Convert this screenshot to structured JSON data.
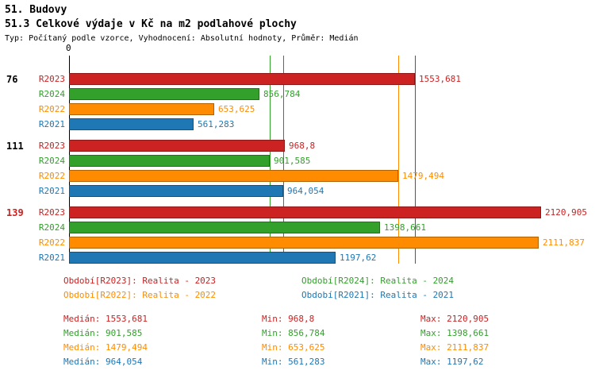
{
  "header": {
    "title": "51. Budovy",
    "subtitle": "51.3 Celkové výdaje v Kč na m2 podlahové plochy",
    "meta": "Typ: Počítaný podle vzorce, Vyhodnocení: Absolutní hodnoty, Průměr: Medián"
  },
  "chart_data": {
    "type": "bar",
    "orientation": "horizontal",
    "title": "51.3 Celkové výdaje v Kč na m2 podlahové plochy",
    "xlabel": "",
    "ylabel": "",
    "xlim": [
      0,
      2365
    ],
    "axis_zero_label": "0",
    "grid": false,
    "legend_position": "bottom",
    "series_colors": {
      "R2023": "#CC2222",
      "R2024": "#33A02C",
      "R2022": "#FF8C00",
      "R2021": "#1F77B4"
    },
    "groups": [
      {
        "label": "76",
        "label_color": "#000000",
        "bars": [
          {
            "name": "R2023",
            "value": 1553.681,
            "value_label": "1553,681"
          },
          {
            "name": "R2024",
            "value": 856.784,
            "value_label": "856,784"
          },
          {
            "name": "R2022",
            "value": 653.625,
            "value_label": "653,625"
          },
          {
            "name": "R2021",
            "value": 561.283,
            "value_label": "561,283"
          }
        ]
      },
      {
        "label": "111",
        "label_color": "#000000",
        "bars": [
          {
            "name": "R2023",
            "value": 968.8,
            "value_label": "968,8"
          },
          {
            "name": "R2024",
            "value": 901.585,
            "value_label": "901,585"
          },
          {
            "name": "R2022",
            "value": 1479.494,
            "value_label": "1479,494"
          },
          {
            "name": "R2021",
            "value": 964.054,
            "value_label": "964,054"
          }
        ]
      },
      {
        "label": "139",
        "label_color": "#CC2222",
        "bars": [
          {
            "name": "R2023",
            "value": 2120.905,
            "value_label": "2120,905"
          },
          {
            "name": "R2024",
            "value": 1398.661,
            "value_label": "1398,661"
          },
          {
            "name": "R2022",
            "value": 2111.837,
            "value_label": "2111,837"
          },
          {
            "name": "R2021",
            "value": 1197.62,
            "value_label": "1197,62"
          }
        ]
      }
    ],
    "median_lines": [
      {
        "series": "R2024",
        "value": 901.585
      },
      {
        "series": "R2021",
        "value": 964.054
      },
      {
        "series": "R2022",
        "value": 1479.494
      },
      {
        "series": "R2023",
        "value": 1553.681
      }
    ]
  },
  "legend": [
    {
      "series": "R2023",
      "label": "Období[R2023]: Realita - 2023"
    },
    {
      "series": "R2024",
      "label": "Období[R2024]: Realita - 2024"
    },
    {
      "series": "R2022",
      "label": "Období[R2022]: Realita - 2022"
    },
    {
      "series": "R2021",
      "label": "Období[R2021]: Realita - 2021"
    }
  ],
  "stats": [
    {
      "series": "R2023",
      "median": "Medián: 1553,681",
      "min": "Min: 968,8",
      "max": "Max: 2120,905"
    },
    {
      "series": "R2024",
      "median": "Medián: 901,585",
      "min": "Min: 856,784",
      "max": "Max: 1398,661"
    },
    {
      "series": "R2022",
      "median": "Medián: 1479,494",
      "min": "Min: 653,625",
      "max": "Max: 2111,837"
    },
    {
      "series": "R2021",
      "median": "Medián: 964,054",
      "min": "Min: 561,283",
      "max": "Max: 1197,62"
    }
  ]
}
